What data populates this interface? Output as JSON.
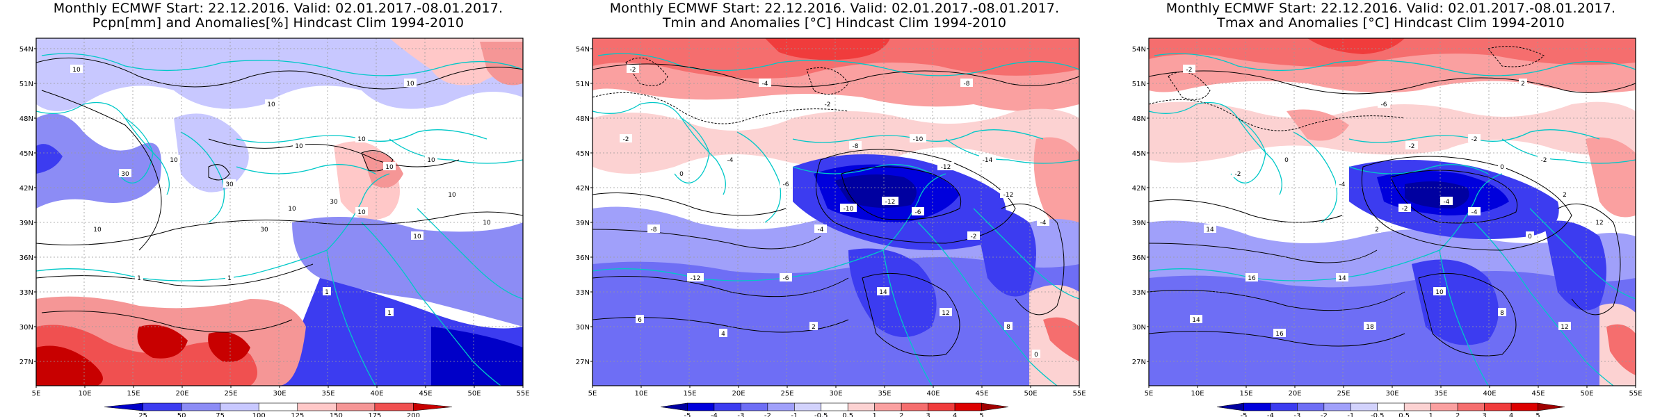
{
  "panels": [
    {
      "title1": "Monthly ECMWF Start: 22.12.2016. Valid: 02.01.2017.-08.01.2017.",
      "title2": "Pcpn[mm] and Anomalies[%] Hindcast Clim 1994-2010",
      "colorbar_labels": [
        "25",
        "50",
        "75",
        "100",
        "125",
        "150",
        "175",
        "200"
      ],
      "colorbar_colors": [
        "#0000c8",
        "#3c3cf0",
        "#8c8cf5",
        "#c8c8ff",
        "#ffffff",
        "#ffc8c8",
        "#f59696",
        "#f05050",
        "#c80000"
      ],
      "contour_labels": [
        "10",
        "10",
        "10",
        "30",
        "10",
        "30",
        "10",
        "10",
        "10",
        "10",
        "30",
        "10",
        "10",
        "30",
        "10",
        "10",
        "10",
        "10",
        "1",
        "1",
        "1",
        "1"
      ]
    },
    {
      "title1": "Monthly ECMWF Start: 22.12.2016. Valid: 02.01.2017.-08.01.2017.",
      "title2": "Tmin and Anomalies [°C] Hindcast Clim 1994-2010",
      "colorbar_labels": [
        "-5",
        "-4",
        "-3",
        "-2",
        "-1",
        "-0.5",
        "0.5",
        "1",
        "2",
        "3",
        "4",
        "5"
      ],
      "colorbar_colors": [
        "#0000a0",
        "#0000dc",
        "#3c3cf0",
        "#6e6ef5",
        "#a0a0fa",
        "#d2d2fc",
        "#ffffff",
        "#fcd2d2",
        "#faa0a0",
        "#f56e6e",
        "#f03c3c",
        "#dc0000",
        "#a00000"
      ],
      "contour_labels": [
        "-2",
        "-2",
        "-8",
        "0",
        "-4",
        "-6",
        "-8",
        "-10",
        "-12",
        "-14",
        "-12",
        "-10",
        "-6",
        "-4",
        "-2",
        "-12",
        "-4",
        "-8",
        "-12",
        "-6",
        "14",
        "12",
        "8",
        "6",
        "4",
        "2",
        "0",
        "-2",
        "-4"
      ]
    },
    {
      "title1": "Monthly ECMWF Start: 22.12.2016. Valid: 02.01.2017.-08.01.2017.",
      "title2": "Tmax and Anomalies [°C] Hindcast Clim 1994-2010",
      "colorbar_labels": [
        "-5",
        "-4",
        "-3",
        "-2",
        "-1",
        "-0.5",
        "0.5",
        "1",
        "2",
        "3",
        "4",
        "5"
      ],
      "colorbar_colors": [
        "#0000a0",
        "#0000dc",
        "#3c3cf0",
        "#6e6ef5",
        "#a0a0fa",
        "#d2d2fc",
        "#ffffff",
        "#fcd2d2",
        "#faa0a0",
        "#f56e6e",
        "#f03c3c",
        "#dc0000",
        "#a00000"
      ],
      "contour_labels": [
        "-2",
        "-6",
        "2",
        "-2",
        "0",
        "-4",
        "-2",
        "-2",
        "0",
        "-2",
        "-4",
        "-2",
        "-4",
        "2",
        "0",
        "2",
        "12",
        "14",
        "16",
        "14",
        "10",
        "8",
        "12",
        "14",
        "16",
        "18"
      ]
    }
  ],
  "lat_labels": [
    "54N",
    "51N",
    "48N",
    "45N",
    "42N",
    "39N",
    "36N",
    "33N",
    "30N",
    "27N"
  ],
  "lon_labels": [
    "5E",
    "10E",
    "15E",
    "20E",
    "25E",
    "30E",
    "35E",
    "40E",
    "45E",
    "50E",
    "55E"
  ]
}
